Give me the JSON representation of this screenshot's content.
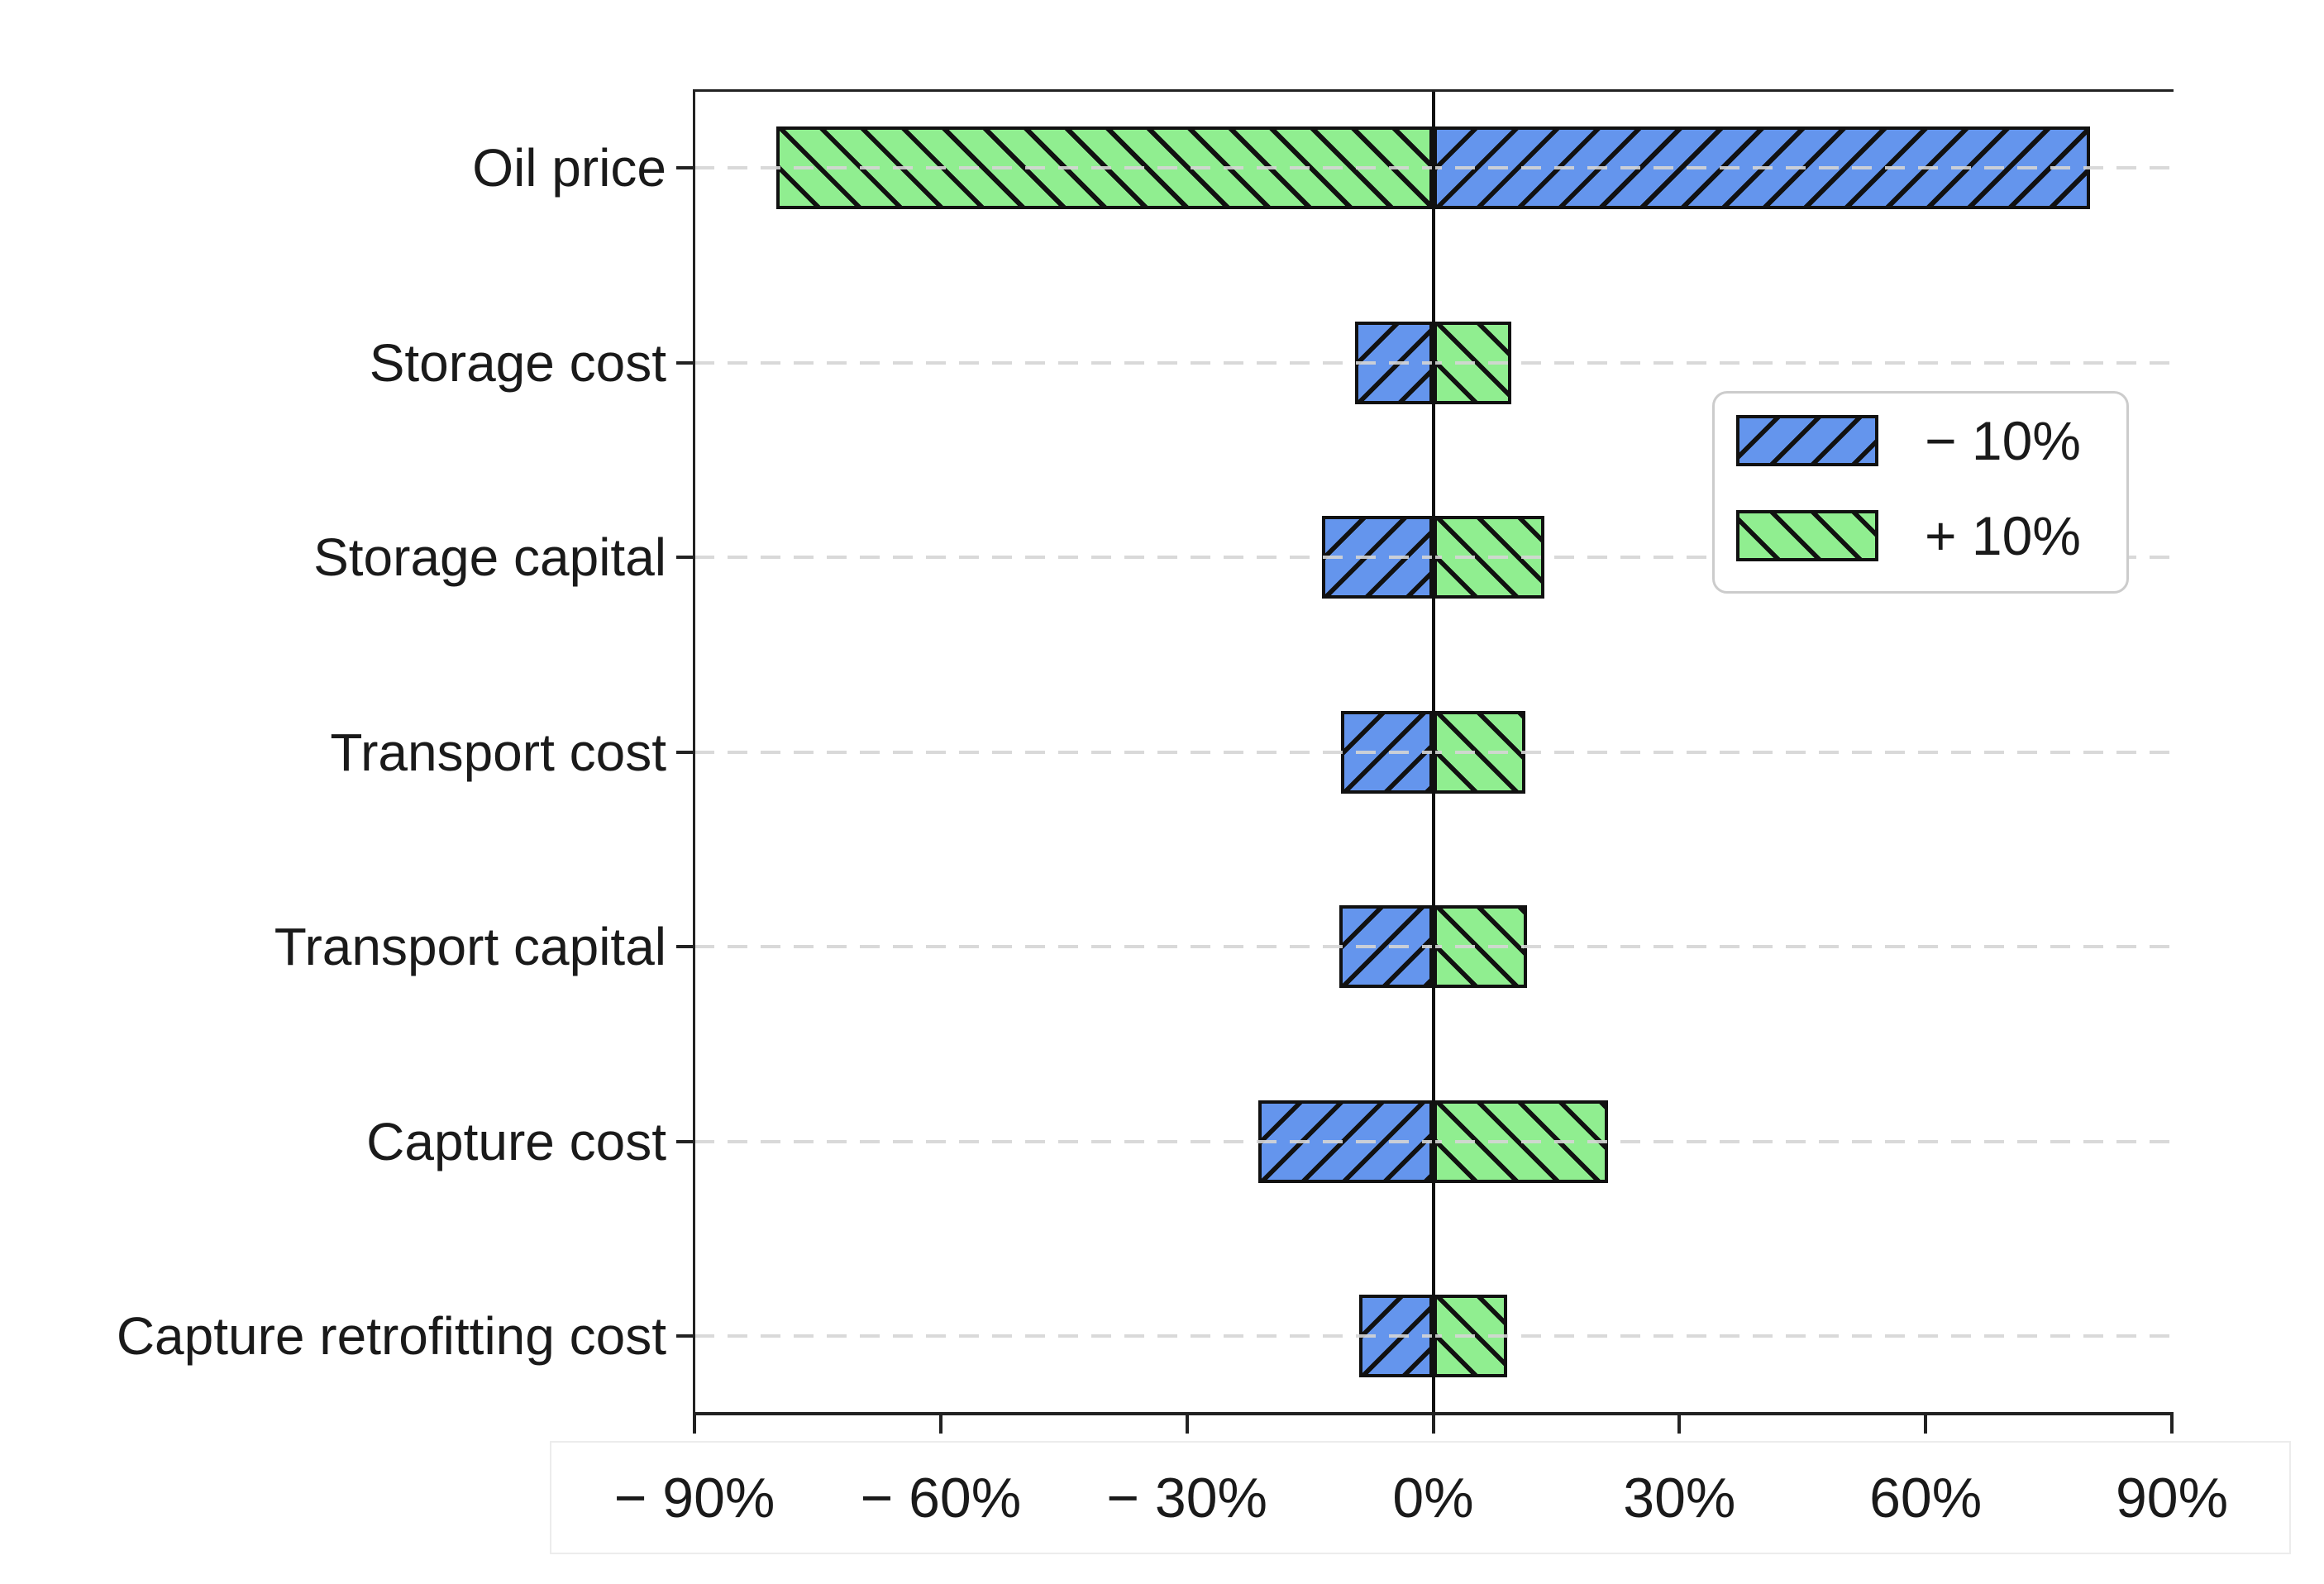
{
  "chart_data": {
    "type": "bar",
    "orientation": "horizontal",
    "title": "",
    "xlabel": "",
    "ylabel": "",
    "categories": [
      "Oil price",
      "Storage cost",
      "Storage capital",
      "Transport cost",
      "Transport capital",
      "Capture cost",
      "Capture retrofitting cost"
    ],
    "series": [
      {
        "name": "− 10%",
        "color": "#6495ed",
        "hatch": "/",
        "values": [
          80,
          -9.5,
          -13.5,
          -11.2,
          -11.4,
          -21.3,
          -9.0
        ]
      },
      {
        "name": "+ 10%",
        "color": "#90ee90",
        "hatch": "\\",
        "values": [
          -80,
          9.5,
          13.5,
          11.2,
          11.4,
          21.3,
          9.0
        ]
      }
    ],
    "xlim": [
      -90,
      90
    ],
    "x_ticks": [
      -90,
      -60,
      -30,
      0,
      30,
      60,
      90
    ],
    "x_tick_labels": [
      "− 90%",
      "− 60%",
      "− 30%",
      "0%",
      "30%",
      "60%",
      "90%"
    ],
    "grid": "horizontal-dashed",
    "gridline_color": "#d5d5d5",
    "zero_line": true,
    "bar_edge_color": "#111111",
    "legend_position": "upper-right-inside"
  }
}
